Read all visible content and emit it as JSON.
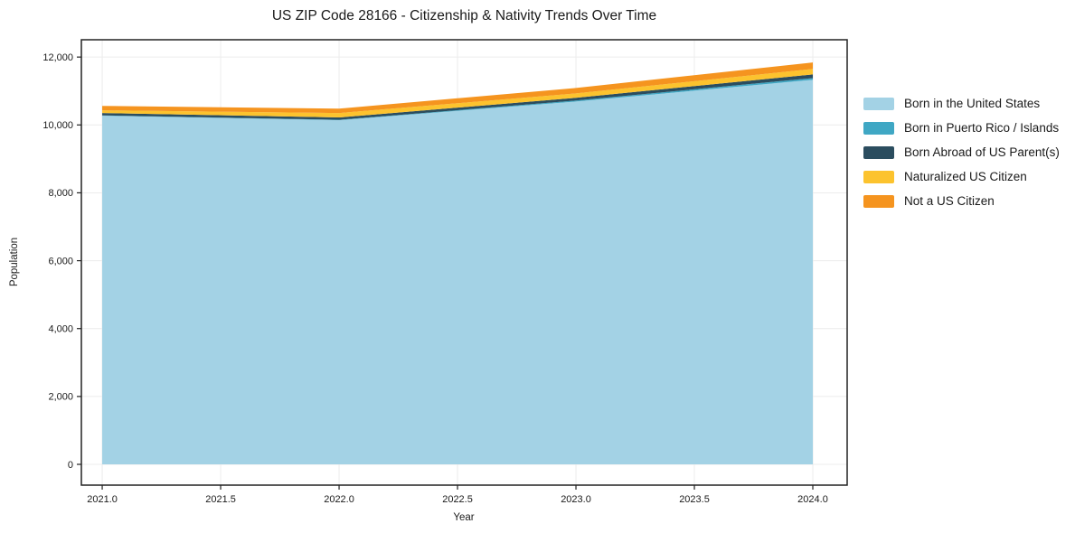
{
  "figure": {
    "title": "US ZIP Code 28166 - Citizenship & Nativity Trends Over Time"
  },
  "chart_data": {
    "type": "area",
    "stacked": true,
    "title": "US ZIP Code 28166 - Citizenship & Nativity Trends Over Time",
    "xlabel": "Year",
    "ylabel": "Population",
    "x": [
      2021,
      2022,
      2023,
      2024
    ],
    "series": [
      {
        "name": "Born in the United States",
        "color": "#A3D2E5",
        "values": [
          10270,
          10140,
          10690,
          11330
        ]
      },
      {
        "name": "Born in Puerto Rico / Islands",
        "color": "#3FA7C4",
        "values": [
          10,
          10,
          30,
          50
        ]
      },
      {
        "name": "Born Abroad of US Parent(s)",
        "color": "#2B4D5F",
        "values": [
          70,
          70,
          80,
          110
        ]
      },
      {
        "name": "Naturalized US Citizen",
        "color": "#FCC32E",
        "values": [
          80,
          130,
          130,
          160
        ]
      },
      {
        "name": "Not a US Citizen",
        "color": "#F5941F",
        "values": [
          130,
          130,
          160,
          190
        ]
      }
    ],
    "xticks": [
      2021.0,
      2021.5,
      2022.0,
      2022.5,
      2023.0,
      2023.5,
      2024.0
    ],
    "xtick_labels": [
      "2021.0",
      "2021.5",
      "2022.0",
      "2022.5",
      "2023.0",
      "2023.5",
      "2024.0"
    ],
    "yticks": [
      0,
      2000,
      4000,
      6000,
      8000,
      10000,
      12000
    ],
    "ytick_labels": [
      "0",
      "2,000",
      "4,000",
      "6,000",
      "8,000",
      "10,000",
      "12,000"
    ],
    "xlim": [
      2020.912,
      2024.145
    ],
    "ylim": [
      -612,
      12510
    ],
    "grid": true,
    "legend_position": "right"
  },
  "colors": {
    "grid": "#ececec",
    "axis": "#222222",
    "text": "#1a1a1a",
    "background": "#ffffff"
  }
}
